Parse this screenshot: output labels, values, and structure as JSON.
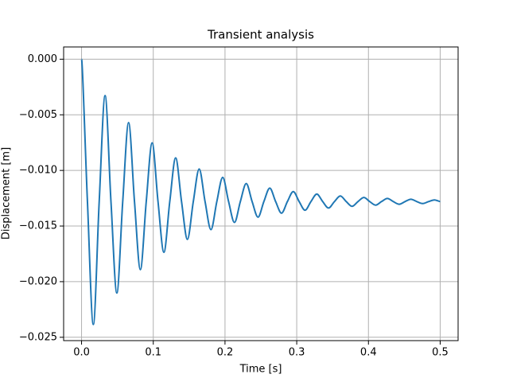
{
  "chart_data": {
    "type": "line",
    "title": "Transient analysis",
    "x_label": "Time [s]",
    "y_label": "Displacement [m]",
    "x": [
      0,
      0.0082,
      0.0164,
      0.0246,
      0.0328,
      0.041,
      0.0492,
      0.0574,
      0.0656,
      0.0738,
      0.082,
      0.0902,
      0.0984,
      0.1066,
      0.1148,
      0.123,
      0.1312,
      0.1394,
      0.1476,
      0.1558,
      0.164,
      0.1722,
      0.1804,
      0.1886,
      0.1968,
      0.205,
      0.2132,
      0.2214,
      0.2296,
      0.2378,
      0.246,
      0.2542,
      0.2624,
      0.2706,
      0.2788,
      0.287,
      0.2952,
      0.3034,
      0.3116,
      0.3198,
      0.328,
      0.3362,
      0.3444,
      0.3526,
      0.3608,
      0.369,
      0.3772,
      0.3854,
      0.3936,
      0.4018,
      0.41,
      0.4182,
      0.4264,
      0.4346,
      0.4428,
      0.451,
      0.4592,
      0.4674,
      0.4756,
      0.4838,
      0.492,
      0.5
    ],
    "values": [
      0,
      -0.0128,
      -0.02385,
      -0.0128,
      -0.00327,
      -0.0128,
      -0.02102,
      -0.0128,
      -0.0057,
      -0.0128,
      -0.01892,
      -0.0128,
      -0.00752,
      -0.0128,
      -0.01736,
      -0.0128,
      -0.00887,
      -0.0128,
      -0.0162,
      -0.0128,
      -0.00987,
      -0.0128,
      -0.01533,
      -0.0128,
      -0.01062,
      -0.0128,
      -0.01468,
      -0.0128,
      -0.01118,
      -0.0128,
      -0.0142,
      -0.0128,
      -0.01159,
      -0.0128,
      -0.01384,
      -0.0128,
      -0.0119,
      -0.0128,
      -0.01358,
      -0.0128,
      -0.01213,
      -0.0128,
      -0.01338,
      -0.0128,
      -0.0123,
      -0.0128,
      -0.01323,
      -0.0128,
      -0.01243,
      -0.0128,
      -0.01312,
      -0.0128,
      -0.01252,
      -0.0128,
      -0.01304,
      -0.0128,
      -0.01259,
      -0.0128,
      -0.01298,
      -0.0128,
      -0.01265,
      -0.0128
    ],
    "color": "#1f77b4",
    "xlim": [
      -0.025,
      0.525
    ],
    "xticks": [
      {
        "value": 0,
        "label": "0.0"
      },
      0.1,
      0.2,
      0.3,
      0.4,
      0.5
    ],
    "ylim": [
      -0.0253,
      0.0011
    ],
    "yticks": [
      {
        "value": 0,
        "label": "0.000"
      },
      {
        "value": -0.005,
        "label": "−0.005"
      },
      {
        "value": -0.01,
        "label": "−0.010"
      },
      {
        "value": -0.015,
        "label": "−0.015"
      },
      {
        "value": -0.02,
        "label": "−0.020"
      },
      {
        "value": -0.025,
        "label": "−0.025"
      }
    ],
    "grid": true
  }
}
